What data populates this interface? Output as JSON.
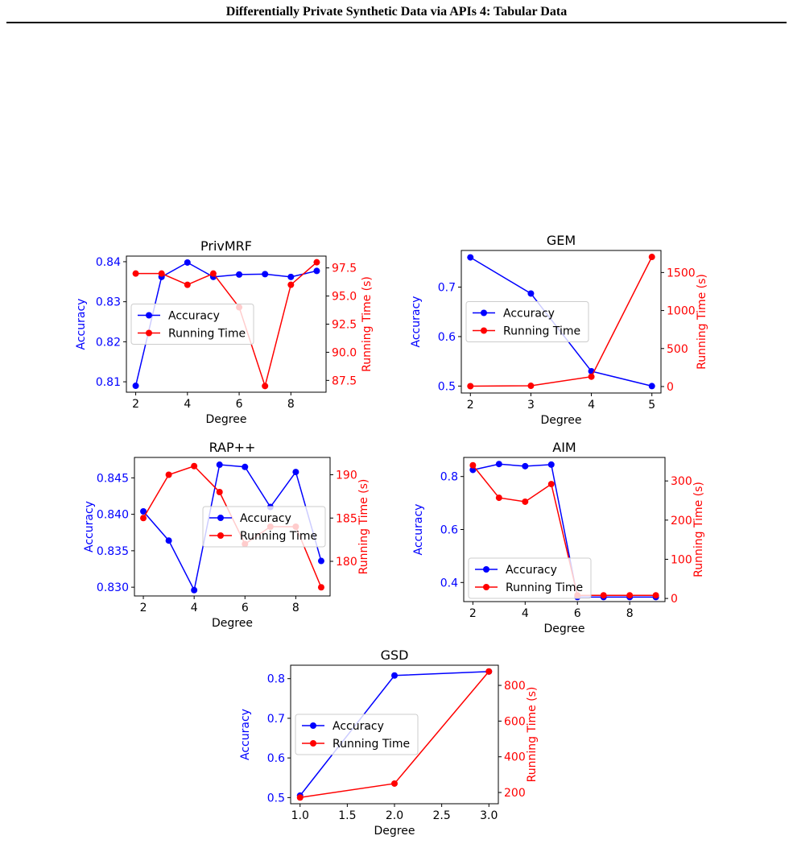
{
  "header": {
    "title": "Differentially Private Synthetic Data via APIs 4: Tabular Data"
  },
  "colors": {
    "accuracy": "#0000ff",
    "running_time": "#ff0000",
    "axis": "#000000"
  },
  "chart_data": [
    {
      "type": "line",
      "title": "PrivMRF",
      "xlabel": "Degree",
      "ylabel_left": "Accuracy",
      "ylabel_right": "Running Time (s)",
      "legend_position": "center-left",
      "xlim": [
        1.64,
        9.36
      ],
      "xticks": [
        2,
        4,
        6,
        8
      ],
      "ylim_left": [
        0.8074,
        0.8414
      ],
      "yticks_left": [
        0.81,
        0.82,
        0.83,
        0.84
      ],
      "ytick_labels_left": [
        "0.81",
        "0.82",
        "0.83",
        "0.84"
      ],
      "ylim_right": [
        86.45,
        98.55
      ],
      "yticks_right": [
        87.5,
        90.0,
        92.5,
        95.0,
        97.5
      ],
      "ytick_labels_right": [
        "87.5",
        "90.0",
        "92.5",
        "95.0",
        "97.5"
      ],
      "x": [
        2,
        3,
        4,
        5,
        6,
        7,
        8,
        9
      ],
      "series": [
        {
          "name": "Accuracy",
          "axis": "left",
          "values": [
            0.809,
            0.8362,
            0.8398,
            0.8362,
            0.8368,
            0.8369,
            0.8362,
            0.8377
          ]
        },
        {
          "name": "Running Time",
          "axis": "right",
          "values": [
            97.0,
            97.0,
            96.0,
            97.0,
            94.0,
            87.0,
            96.0,
            98.0
          ]
        }
      ]
    },
    {
      "type": "line",
      "title": "GEM",
      "xlabel": "Degree",
      "ylabel_left": "Accuracy",
      "ylabel_right": "Running Time (s)",
      "legend_position": "center-left",
      "xlim": [
        1.85,
        5.15
      ],
      "xticks": [
        2,
        3,
        4,
        5
      ],
      "ylim_left": [
        0.486,
        0.774
      ],
      "yticks_left": [
        0.5,
        0.6,
        0.7
      ],
      "ytick_labels_left": [
        "0.5",
        "0.6",
        "0.7"
      ],
      "ylim_right": [
        -85,
        1790
      ],
      "yticks_right": [
        0,
        500,
        1000,
        1500
      ],
      "ytick_labels_right": [
        "0",
        "500",
        "1000",
        "1500"
      ],
      "x": [
        2,
        3,
        4,
        5
      ],
      "series": [
        {
          "name": "Accuracy",
          "axis": "left",
          "values": [
            0.76,
            0.687,
            0.53,
            0.5
          ]
        },
        {
          "name": "Running Time",
          "axis": "right",
          "values": [
            5,
            10,
            130,
            1705
          ]
        }
      ]
    },
    {
      "type": "line",
      "title": "RAP++",
      "xlabel": "Degree",
      "ylabel_left": "Accuracy",
      "ylabel_right": "Running Time (s)",
      "legend_position": "center-right",
      "xlim": [
        1.65,
        9.35
      ],
      "xticks": [
        2,
        4,
        6,
        8
      ],
      "ylim_left": [
        0.8288,
        0.8478
      ],
      "yticks_left": [
        0.83,
        0.835,
        0.84,
        0.845
      ],
      "ytick_labels_left": [
        "0.830",
        "0.835",
        "0.840",
        "0.845"
      ],
      "ylim_right": [
        176,
        192
      ],
      "yticks_right": [
        180,
        185,
        190
      ],
      "ytick_labels_right": [
        "180",
        "185",
        "190"
      ],
      "x": [
        2,
        3,
        4,
        5,
        6,
        7,
        8,
        9
      ],
      "series": [
        {
          "name": "Accuracy",
          "axis": "left",
          "values": [
            0.8404,
            0.8364,
            0.8296,
            0.8468,
            0.8465,
            0.841,
            0.8458,
            0.8336
          ]
        },
        {
          "name": "Running Time",
          "axis": "right",
          "values": [
            185.0,
            190.0,
            191.0,
            188.0,
            182.0,
            184.0,
            184.0,
            177.0
          ]
        }
      ]
    },
    {
      "type": "line",
      "title": "AIM",
      "xlabel": "Degree",
      "ylabel_left": "Accuracy",
      "ylabel_right": "Running Time (s)",
      "legend_position": "lower-left",
      "xlim": [
        1.65,
        9.35
      ],
      "xticks": [
        2,
        4,
        6,
        8
      ],
      "ylim_left": [
        0.328,
        0.872
      ],
      "yticks_left": [
        0.4,
        0.6,
        0.8
      ],
      "ytick_labels_left": [
        "0.4",
        "0.6",
        "0.8"
      ],
      "ylim_right": [
        -8,
        360
      ],
      "yticks_right": [
        0,
        100,
        200,
        300
      ],
      "ytick_labels_right": [
        "0",
        "100",
        "200",
        "300"
      ],
      "x": [
        2,
        3,
        4,
        5,
        6,
        7,
        8,
        9
      ],
      "series": [
        {
          "name": "Accuracy",
          "axis": "left",
          "values": [
            0.825,
            0.847,
            0.839,
            0.845,
            0.345,
            0.345,
            0.345,
            0.345
          ]
        },
        {
          "name": "Running Time",
          "axis": "right",
          "values": [
            340,
            257,
            247,
            292,
            8,
            8,
            8,
            8
          ]
        }
      ]
    },
    {
      "type": "line",
      "title": "GSD",
      "xlabel": "Degree",
      "ylabel_left": "Accuracy",
      "ylabel_right": "Running Time (s)",
      "legend_position": "center-left",
      "xlim": [
        0.9,
        3.1
      ],
      "xticks": [
        1.0,
        1.5,
        2.0,
        2.5,
        3.0
      ],
      "xtick_labels": [
        "1.0",
        "1.5",
        "2.0",
        "2.5",
        "3.0"
      ],
      "ylim_left": [
        0.4845,
        0.8339
      ],
      "yticks_left": [
        0.5,
        0.6,
        0.7,
        0.8
      ],
      "ytick_labels_left": [
        "0.5",
        "0.6",
        "0.7",
        "0.8"
      ],
      "ylim_right": [
        137,
        913
      ],
      "yticks_right": [
        200,
        400,
        600,
        800
      ],
      "ytick_labels_right": [
        "200",
        "400",
        "600",
        "800"
      ],
      "x": [
        1,
        2,
        3
      ],
      "series": [
        {
          "name": "Accuracy",
          "axis": "left",
          "values": [
            0.505,
            0.808,
            0.818
          ]
        },
        {
          "name": "Running Time",
          "axis": "right",
          "values": [
            172,
            250,
            878
          ]
        }
      ]
    }
  ]
}
